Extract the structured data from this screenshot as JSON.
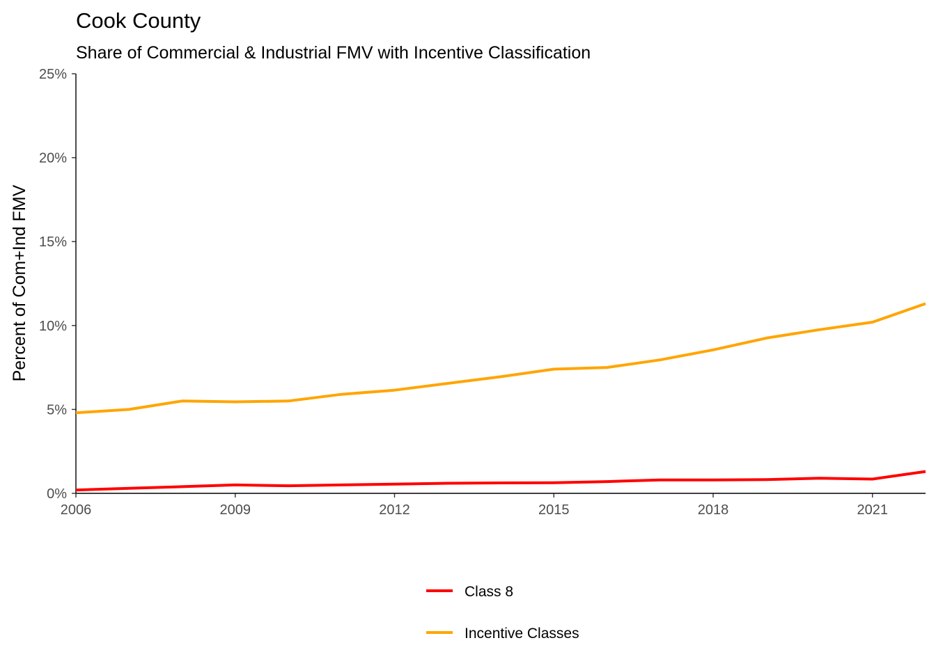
{
  "chart_data": {
    "type": "line",
    "title": "Cook County",
    "subtitle": "Share of Commercial & Industrial FMV with Incentive Classification",
    "xlabel": "",
    "ylabel": "Percent of Com+Ind FMV",
    "xlim": [
      2006,
      2022
    ],
    "ylim": [
      0,
      0.25
    ],
    "x_ticks": [
      {
        "value": 2006,
        "label": "2006"
      },
      {
        "value": 2009,
        "label": "2009"
      },
      {
        "value": 2012,
        "label": "2012"
      },
      {
        "value": 2015,
        "label": "2015"
      },
      {
        "value": 2018,
        "label": "2018"
      },
      {
        "value": 2021,
        "label": "2021"
      }
    ],
    "y_ticks": [
      {
        "value": 0,
        "label": "0%"
      },
      {
        "value": 0.05,
        "label": "5%"
      },
      {
        "value": 0.1,
        "label": "10%"
      },
      {
        "value": 0.15,
        "label": "15%"
      },
      {
        "value": 0.2,
        "label": "20%"
      },
      {
        "value": 0.25,
        "label": "25%"
      }
    ],
    "grid": false,
    "legend_position": "bottom",
    "x": [
      2006,
      2007,
      2008,
      2009,
      2010,
      2011,
      2012,
      2013,
      2014,
      2015,
      2016,
      2017,
      2018,
      2019,
      2020,
      2021,
      2022
    ],
    "series": [
      {
        "name": "Class 8",
        "color": "#ff0000",
        "values": [
          0.002,
          0.003,
          0.004,
          0.005,
          0.0045,
          0.005,
          0.0055,
          0.006,
          0.0062,
          0.0063,
          0.007,
          0.008,
          0.008,
          0.0082,
          0.009,
          0.0085,
          0.013
        ]
      },
      {
        "name": "Incentive Classes",
        "color": "#ffa500",
        "values": [
          0.048,
          0.05,
          0.055,
          0.0545,
          0.055,
          0.059,
          0.0615,
          0.0655,
          0.0695,
          0.074,
          0.075,
          0.0795,
          0.0855,
          0.0925,
          0.0975,
          0.102,
          0.113
        ]
      }
    ]
  }
}
